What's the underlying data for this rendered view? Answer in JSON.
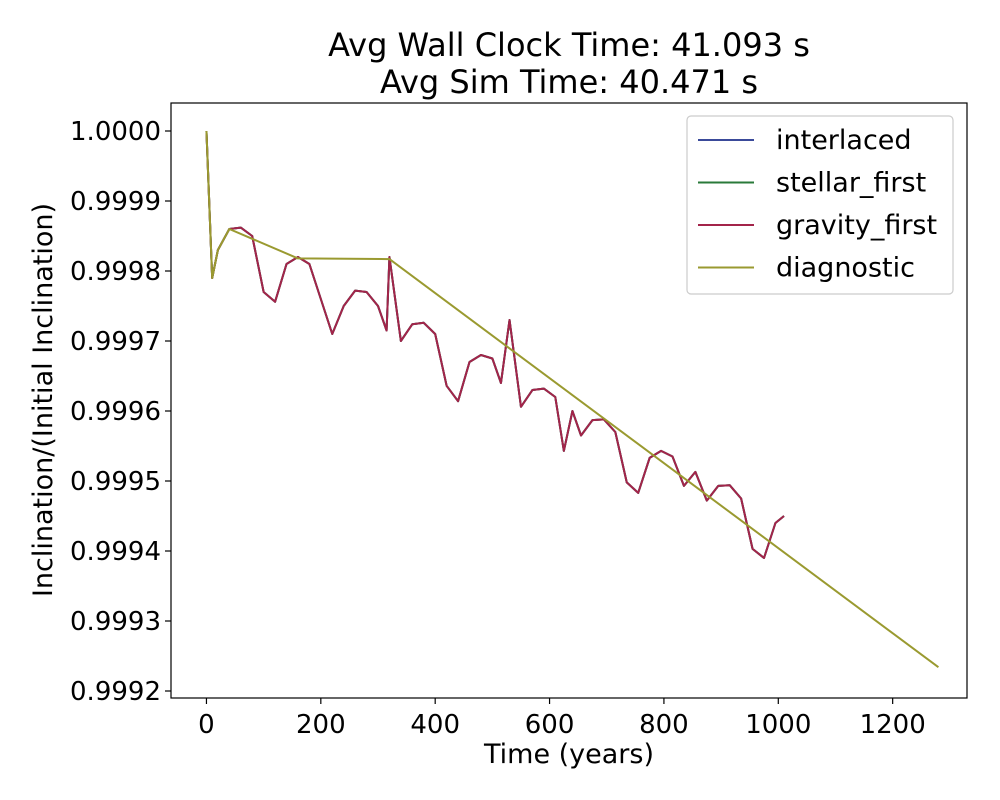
{
  "chart_data": {
    "type": "line",
    "title": [
      "Avg Wall Clock Time: 41.093 s",
      "Avg Sim Time: 40.471 s"
    ],
    "xlabel": "Time (years)",
    "ylabel": "Inclination/(Initial Inclination)",
    "xlim": [
      -62,
      1330
    ],
    "ylim": [
      0.99919,
      1.00004
    ],
    "xticks": [
      0,
      200,
      400,
      600,
      800,
      1000,
      1200
    ],
    "xtick_labels": [
      "0",
      "200",
      "400",
      "600",
      "800",
      "1000",
      "1200"
    ],
    "yticks": [
      0.9992,
      0.9993,
      0.9994,
      0.9995,
      0.9996,
      0.9997,
      0.9998,
      0.9999,
      1.0
    ],
    "ytick_labels": [
      "0.9992",
      "0.9993",
      "0.9994",
      "0.9995",
      "0.9996",
      "0.9997",
      "0.9998",
      "0.9999",
      "1.0000"
    ],
    "grid": false,
    "legend_position": "upper-right",
    "series": [
      {
        "name": "interlaced",
        "color": "#3a4a9a",
        "x": [
          0,
          10,
          20,
          40,
          60,
          80,
          100,
          120,
          140,
          160,
          180,
          200,
          220,
          240,
          260,
          280,
          300,
          315,
          320,
          340,
          360,
          380,
          400,
          420,
          440,
          460,
          480,
          500,
          515,
          530,
          550,
          570,
          590,
          610,
          625,
          640,
          655,
          675,
          695,
          715,
          735,
          755,
          775,
          795,
          815,
          835,
          855,
          875,
          895,
          915,
          935,
          955,
          975,
          995,
          1010
        ],
        "y": [
          1.0,
          0.99979,
          0.99983,
          0.99986,
          0.999862,
          0.99985,
          0.99977,
          0.999756,
          0.99981,
          0.99982,
          0.99981,
          0.99976,
          0.99971,
          0.99975,
          0.999772,
          0.99977,
          0.99975,
          0.999715,
          0.99982,
          0.9997,
          0.999724,
          0.999726,
          0.99971,
          0.999636,
          0.999614,
          0.99967,
          0.99968,
          0.999675,
          0.99964,
          0.99973,
          0.999606,
          0.99963,
          0.999632,
          0.99962,
          0.999543,
          0.9996,
          0.999565,
          0.999587,
          0.999588,
          0.99957,
          0.999498,
          0.999483,
          0.999533,
          0.999543,
          0.999535,
          0.999493,
          0.999513,
          0.999472,
          0.999493,
          0.999494,
          0.999475,
          0.999403,
          0.99939,
          0.99944,
          0.99945
        ]
      },
      {
        "name": "stellar_first",
        "color": "#2a7a3a",
        "x": [
          0,
          10,
          20,
          40,
          60,
          80,
          100,
          120,
          140,
          160,
          180,
          200,
          220,
          240,
          260,
          280,
          300,
          315,
          320,
          340,
          360,
          380,
          400,
          420,
          440,
          460,
          480,
          500,
          515,
          530,
          550,
          570,
          590,
          610,
          625,
          640,
          655,
          675,
          695,
          715,
          735,
          755,
          775,
          795,
          815,
          835,
          855,
          875,
          895,
          915,
          935,
          955,
          975,
          995,
          1010
        ],
        "y": [
          1.0,
          0.99979,
          0.99983,
          0.99986,
          0.999862,
          0.99985,
          0.99977,
          0.999756,
          0.99981,
          0.99982,
          0.99981,
          0.99976,
          0.99971,
          0.99975,
          0.999772,
          0.99977,
          0.99975,
          0.999715,
          0.99982,
          0.9997,
          0.999724,
          0.999726,
          0.99971,
          0.999636,
          0.999614,
          0.99967,
          0.99968,
          0.999675,
          0.99964,
          0.99973,
          0.999606,
          0.99963,
          0.999632,
          0.99962,
          0.999543,
          0.9996,
          0.999565,
          0.999587,
          0.999588,
          0.99957,
          0.999498,
          0.999483,
          0.999533,
          0.999543,
          0.999535,
          0.999493,
          0.999513,
          0.999472,
          0.999493,
          0.999494,
          0.999475,
          0.999403,
          0.99939,
          0.99944,
          0.99945
        ]
      },
      {
        "name": "gravity_first",
        "color": "#a3244a",
        "x": [
          0,
          10,
          20,
          40,
          60,
          80,
          100,
          120,
          140,
          160,
          180,
          200,
          220,
          240,
          260,
          280,
          300,
          315,
          320,
          340,
          360,
          380,
          400,
          420,
          440,
          460,
          480,
          500,
          515,
          530,
          550,
          570,
          590,
          610,
          625,
          640,
          655,
          675,
          695,
          715,
          735,
          755,
          775,
          795,
          815,
          835,
          855,
          875,
          895,
          915,
          935,
          955,
          975,
          995,
          1010
        ],
        "y": [
          1.0,
          0.99979,
          0.99983,
          0.99986,
          0.999862,
          0.99985,
          0.99977,
          0.999756,
          0.99981,
          0.99982,
          0.99981,
          0.99976,
          0.99971,
          0.99975,
          0.999772,
          0.99977,
          0.99975,
          0.999715,
          0.99982,
          0.9997,
          0.999724,
          0.999726,
          0.99971,
          0.999636,
          0.999614,
          0.99967,
          0.99968,
          0.999675,
          0.99964,
          0.99973,
          0.999606,
          0.99963,
          0.999632,
          0.99962,
          0.999543,
          0.9996,
          0.999565,
          0.999587,
          0.999588,
          0.99957,
          0.999498,
          0.999483,
          0.999533,
          0.999543,
          0.999535,
          0.999493,
          0.999513,
          0.999472,
          0.999493,
          0.999494,
          0.999475,
          0.999403,
          0.99939,
          0.99944,
          0.99945
        ]
      },
      {
        "name": "diagnostic",
        "color": "#9a9a30",
        "x": [
          0,
          10,
          20,
          40,
          160,
          320,
          1280
        ],
        "y": [
          1.0,
          0.99979,
          0.99983,
          0.99986,
          0.999818,
          0.999817,
          0.999234
        ]
      }
    ]
  }
}
